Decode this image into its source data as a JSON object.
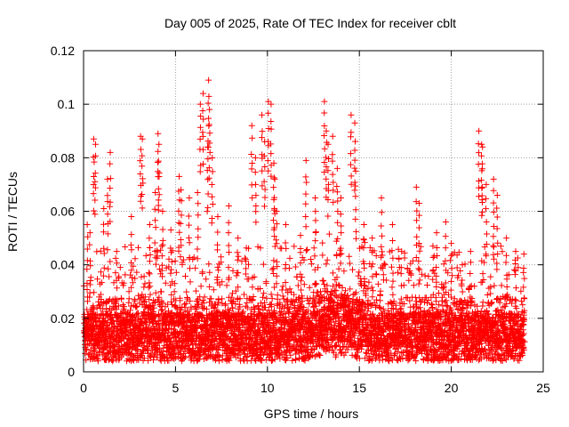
{
  "chart_data": {
    "type": "scatter",
    "title": "Day 005 of 2025, Rate Of TEC Index for receiver cblt",
    "xlabel": "GPS time / hours",
    "ylabel": "ROTI / TECUs",
    "xlim": [
      0,
      25
    ],
    "ylim": [
      0,
      0.12
    ],
    "x_ticks": [
      0,
      5,
      10,
      15,
      20,
      25
    ],
    "x_tick_labels": [
      "0",
      "5",
      "10",
      "15",
      "20",
      "25"
    ],
    "y_ticks": [
      0,
      0.02,
      0.04,
      0.06,
      0.08,
      0.1,
      0.12
    ],
    "y_tick_labels": [
      "0",
      "0.02",
      "0.04",
      "0.06",
      "0.08",
      "0.1",
      "0.12"
    ],
    "grid": true,
    "marker": "+",
    "series": [
      {
        "name": "ROTI",
        "color": "#ff0000",
        "x": [
          0.2,
          0.35,
          0.55,
          0.65,
          1.1,
          1.3,
          1.45,
          1.8,
          2.6,
          3.1,
          3.2,
          3.6,
          3.9,
          4.05,
          4.1,
          4.3,
          4.75,
          5.2,
          5.3,
          5.75,
          6.2,
          6.35,
          6.5,
          6.75,
          6.8,
          6.85,
          7.0,
          7.3,
          7.9,
          8.4,
          9.15,
          9.35,
          9.7,
          9.85,
          10.05,
          10.2,
          10.35,
          10.4,
          10.5,
          11.0,
          11.8,
          12.1,
          12.6,
          13.1,
          13.2,
          13.3,
          13.55,
          13.8,
          14.0,
          14.55,
          14.75,
          14.8,
          15.25,
          15.7,
          16.2,
          16.8,
          17.3,
          18.1,
          18.25,
          19.0,
          19.2,
          19.7,
          20.0,
          20.6,
          21.05,
          21.5,
          21.65,
          21.7,
          21.9,
          22.3,
          22.5,
          23.0,
          23.5,
          23.95
        ],
        "y": [
          0.055,
          0.052,
          0.087,
          0.085,
          0.061,
          0.072,
          0.082,
          0.045,
          0.058,
          0.088,
          0.087,
          0.055,
          0.067,
          0.089,
          0.085,
          0.06,
          0.053,
          0.073,
          0.068,
          0.065,
          0.067,
          0.1,
          0.104,
          0.084,
          0.109,
          0.098,
          0.08,
          0.058,
          0.062,
          0.05,
          0.092,
          0.08,
          0.096,
          0.086,
          0.101,
          0.1,
          0.078,
          0.072,
          0.06,
          0.055,
          0.051,
          0.079,
          0.065,
          0.101,
          0.09,
          0.085,
          0.088,
          0.076,
          0.065,
          0.096,
          0.093,
          0.075,
          0.055,
          0.05,
          0.065,
          0.055,
          0.045,
          0.069,
          0.063,
          0.047,
          0.052,
          0.056,
          0.048,
          0.04,
          0.045,
          0.09,
          0.085,
          0.084,
          0.07,
          0.072,
          0.066,
          0.05,
          0.045,
          0.044
        ],
        "note": "Dense background of several thousand '+' markers spanning 0–24 h with ROTI mostly between ~0.003 and ~0.04 TECU/s; the listed points are the visible upper outliers."
      }
    ]
  }
}
